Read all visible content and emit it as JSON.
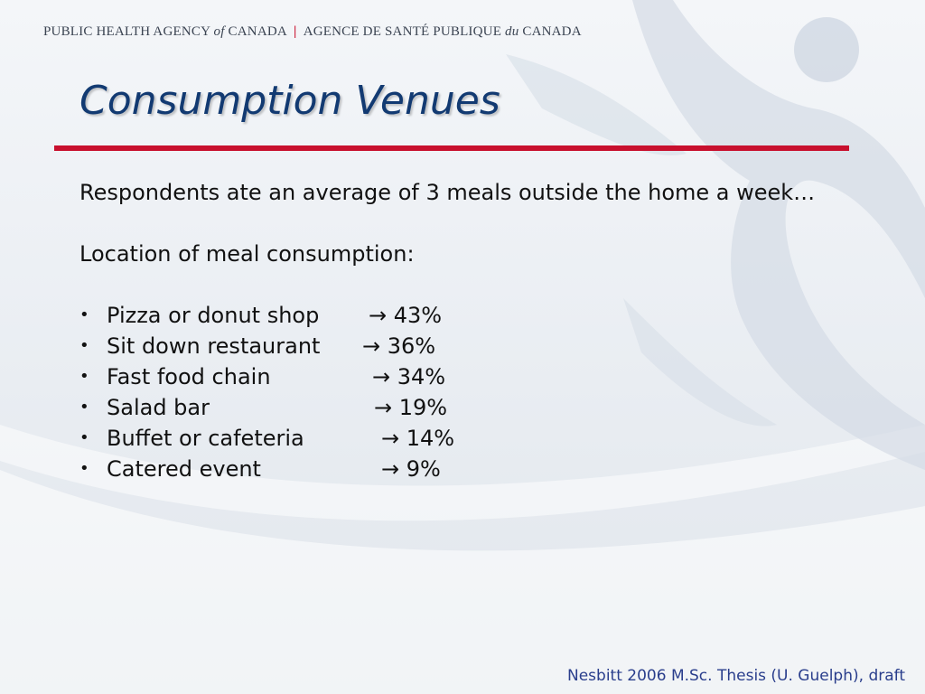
{
  "header": {
    "part1": "PUBLIC HEALTH AGENCY ",
    "part1_italic": "of",
    "part2": " CANADA",
    "separator": "|",
    "part3": "AGENCE DE SANTÉ PUBLIQUE ",
    "part3_italic": "du",
    "part4": " CANADA"
  },
  "slide": {
    "title": "Consumption Venues",
    "intro": "Respondents ate an average of 3 meals outside the home a week…",
    "subheading": "Location of meal consumption:",
    "bullet_glyph": "•",
    "arrow_glyph": "→",
    "items": [
      {
        "label": "Pizza or donut shop",
        "value": "43%"
      },
      {
        "label": "Sit down restaurant",
        "value": "36%"
      },
      {
        "label": "Fast food chain",
        "value": "34%"
      },
      {
        "label": "Salad bar",
        "value": "19%"
      },
      {
        "label": "Buffet or cafeteria",
        "value": "14%"
      },
      {
        "label": "Catered event",
        "value": "9%"
      }
    ]
  },
  "footer": {
    "citation": "Nesbitt 2006 M.Sc. Thesis (U. Guelph), draft"
  },
  "colors": {
    "title": "#123a72",
    "rule": "#c8102e",
    "footer": "#2a3e8c"
  }
}
